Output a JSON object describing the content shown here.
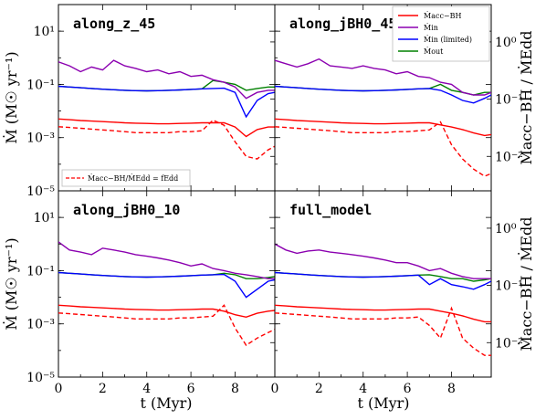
{
  "chart_data": {
    "type": "line",
    "shared": {
      "xlabel": "t (Myr)",
      "ylabel_left": "Ṁ (M☉ yr⁻¹)",
      "ylabel_right": "Ṁacc−BH / ṀEdd",
      "x_ticks": [
        "0",
        "2",
        "4",
        "6",
        "8"
      ],
      "y_ticks_left": [
        "10¹",
        "10⁻¹",
        "10⁻³",
        "10⁻⁵"
      ],
      "y_ticks_right": [
        "10⁰",
        "10⁻¹",
        "10⁻²"
      ],
      "xlim": [
        0,
        9.8
      ],
      "ylim_left": [
        1e-05,
        100
      ],
      "ylim_right": [
        0.0025,
        4.5
      ],
      "yscale": "log",
      "legend": [
        {
          "label": "Ṁacc−BH",
          "color": "#ff0000"
        },
        {
          "label": "Ṁin",
          "color": "#8b00b0"
        },
        {
          "label": "Ṁin (limited)",
          "color": "#0000ff"
        },
        {
          "label": "Ṁout",
          "color": "#008000"
        }
      ],
      "legend_dashed": "Ṁacc−BH/ṀEdd = fEdd",
      "colors": {
        "acc": "#ff0000",
        "in": "#8b00b0",
        "lim": "#0000ff",
        "out": "#008000"
      }
    },
    "panels": [
      {
        "title": "along_z_45",
        "x": [
          0,
          0.5,
          1,
          1.5,
          2,
          2.5,
          3,
          3.5,
          4,
          4.5,
          5,
          5.5,
          6,
          6.5,
          7,
          7.5,
          8,
          8.5,
          9,
          9.5,
          9.8
        ],
        "series": {
          "m_in": [
            0.7,
            0.5,
            0.3,
            0.45,
            0.35,
            0.8,
            0.5,
            0.4,
            0.3,
            0.35,
            0.25,
            0.3,
            0.2,
            0.22,
            0.15,
            0.12,
            0.08,
            0.03,
            0.05,
            0.06,
            0.06
          ],
          "m_in_lim": [
            0.085,
            0.08,
            0.075,
            0.07,
            0.066,
            0.063,
            0.06,
            0.058,
            0.057,
            0.058,
            0.06,
            0.062,
            0.065,
            0.068,
            0.07,
            0.072,
            0.05,
            0.006,
            0.025,
            0.045,
            0.05
          ],
          "m_out": [
            0.085,
            0.08,
            0.075,
            0.07,
            0.066,
            0.063,
            0.06,
            0.058,
            0.057,
            0.058,
            0.06,
            0.062,
            0.065,
            0.068,
            0.14,
            0.12,
            0.1,
            0.06,
            0.07,
            0.08,
            0.08
          ],
          "m_acc": [
            0.005,
            0.0047,
            0.0044,
            0.0042,
            0.004,
            0.0038,
            0.0036,
            0.0035,
            0.0034,
            0.0033,
            0.0033,
            0.0034,
            0.0035,
            0.0036,
            0.0036,
            0.0036,
            0.0025,
            0.0011,
            0.002,
            0.0025,
            0.0025
          ],
          "f_edd": [
            0.033,
            0.032,
            0.031,
            0.03,
            0.029,
            0.028,
            0.027,
            0.026,
            0.026,
            0.026,
            0.026,
            0.027,
            0.027,
            0.028,
            0.043,
            0.035,
            0.018,
            0.01,
            0.009,
            0.013,
            0.015
          ]
        }
      },
      {
        "title": "along_jBH0_45",
        "x": [
          0,
          0.5,
          1,
          1.5,
          2,
          2.5,
          3,
          3.5,
          4,
          4.5,
          5,
          5.5,
          6,
          6.5,
          7,
          7.5,
          8,
          8.5,
          9,
          9.5,
          9.8
        ],
        "series": {
          "m_in": [
            0.8,
            0.6,
            0.45,
            0.6,
            0.9,
            0.5,
            0.45,
            0.4,
            0.5,
            0.4,
            0.35,
            0.25,
            0.3,
            0.2,
            0.18,
            0.12,
            0.1,
            0.05,
            0.04,
            0.04,
            0.05
          ],
          "m_in_lim": [
            0.085,
            0.08,
            0.075,
            0.07,
            0.066,
            0.063,
            0.06,
            0.058,
            0.057,
            0.058,
            0.06,
            0.062,
            0.065,
            0.068,
            0.07,
            0.06,
            0.04,
            0.025,
            0.02,
            0.03,
            0.04
          ],
          "m_out": [
            0.085,
            0.08,
            0.075,
            0.07,
            0.066,
            0.063,
            0.06,
            0.058,
            0.057,
            0.058,
            0.06,
            0.062,
            0.065,
            0.068,
            0.07,
            0.1,
            0.06,
            0.05,
            0.04,
            0.05,
            0.05
          ],
          "m_acc": [
            0.005,
            0.0047,
            0.0044,
            0.0042,
            0.004,
            0.0038,
            0.0036,
            0.0035,
            0.0034,
            0.0033,
            0.0033,
            0.0034,
            0.0035,
            0.0036,
            0.0036,
            0.003,
            0.0025,
            0.002,
            0.0015,
            0.0012,
            0.0013
          ],
          "f_edd": [
            0.033,
            0.032,
            0.031,
            0.03,
            0.029,
            0.028,
            0.027,
            0.026,
            0.026,
            0.026,
            0.026,
            0.027,
            0.027,
            0.028,
            0.029,
            0.04,
            0.016,
            0.009,
            0.006,
            0.0045,
            0.005
          ]
        }
      },
      {
        "title": "along_jBH0_10",
        "x": [
          0,
          0.5,
          1,
          1.5,
          2,
          2.5,
          3,
          3.5,
          4,
          4.5,
          5,
          5.5,
          6,
          6.5,
          7,
          7.5,
          8,
          8.5,
          9,
          9.5,
          9.8
        ],
        "series": {
          "m_in": [
            1.2,
            0.6,
            0.5,
            0.4,
            0.7,
            0.6,
            0.5,
            0.4,
            0.35,
            0.3,
            0.25,
            0.2,
            0.15,
            0.18,
            0.12,
            0.1,
            0.08,
            0.07,
            0.06,
            0.05,
            0.05
          ],
          "m_in_lim": [
            0.085,
            0.08,
            0.075,
            0.07,
            0.066,
            0.063,
            0.06,
            0.058,
            0.057,
            0.058,
            0.06,
            0.062,
            0.065,
            0.068,
            0.07,
            0.072,
            0.04,
            0.01,
            0.02,
            0.04,
            0.045
          ],
          "m_out": [
            0.085,
            0.08,
            0.075,
            0.07,
            0.066,
            0.063,
            0.06,
            0.058,
            0.057,
            0.058,
            0.06,
            0.062,
            0.065,
            0.068,
            0.07,
            0.08,
            0.07,
            0.05,
            0.05,
            0.055,
            0.06
          ],
          "m_acc": [
            0.005,
            0.0047,
            0.0044,
            0.0042,
            0.004,
            0.0038,
            0.0036,
            0.0035,
            0.0034,
            0.0033,
            0.0033,
            0.0034,
            0.0035,
            0.0036,
            0.0036,
            0.003,
            0.0022,
            0.0018,
            0.0025,
            0.003,
            0.0032
          ],
          "f_edd": [
            0.033,
            0.032,
            0.031,
            0.03,
            0.029,
            0.028,
            0.027,
            0.026,
            0.026,
            0.026,
            0.026,
            0.027,
            0.027,
            0.028,
            0.029,
            0.045,
            0.018,
            0.009,
            0.012,
            0.015,
            0.017
          ]
        }
      },
      {
        "title": "full_model",
        "x": [
          0,
          0.5,
          1,
          1.5,
          2,
          2.5,
          3,
          3.5,
          4,
          4.5,
          5,
          5.5,
          6,
          6.5,
          7,
          7.5,
          8,
          8.5,
          9,
          9.5,
          9.8
        ],
        "series": {
          "m_in": [
            1.0,
            0.6,
            0.45,
            0.55,
            0.6,
            0.5,
            0.45,
            0.4,
            0.35,
            0.3,
            0.25,
            0.2,
            0.2,
            0.15,
            0.1,
            0.12,
            0.08,
            0.06,
            0.05,
            0.05,
            0.05
          ],
          "m_in_lim": [
            0.085,
            0.08,
            0.075,
            0.07,
            0.066,
            0.063,
            0.06,
            0.058,
            0.057,
            0.058,
            0.06,
            0.062,
            0.065,
            0.068,
            0.03,
            0.05,
            0.03,
            0.025,
            0.02,
            0.03,
            0.04
          ],
          "m_out": [
            0.085,
            0.08,
            0.075,
            0.07,
            0.066,
            0.063,
            0.06,
            0.058,
            0.057,
            0.058,
            0.06,
            0.062,
            0.065,
            0.068,
            0.07,
            0.06,
            0.05,
            0.05,
            0.04,
            0.045,
            0.05
          ],
          "m_acc": [
            0.005,
            0.0047,
            0.0044,
            0.0042,
            0.004,
            0.0038,
            0.0036,
            0.0035,
            0.0034,
            0.0033,
            0.0033,
            0.0034,
            0.0035,
            0.0036,
            0.0036,
            0.003,
            0.0025,
            0.002,
            0.0015,
            0.0012,
            0.0012
          ],
          "f_edd": [
            0.033,
            0.032,
            0.031,
            0.03,
            0.029,
            0.028,
            0.027,
            0.026,
            0.026,
            0.026,
            0.026,
            0.027,
            0.027,
            0.028,
            0.02,
            0.012,
            0.04,
            0.012,
            0.008,
            0.006,
            0.006
          ]
        }
      }
    ]
  }
}
